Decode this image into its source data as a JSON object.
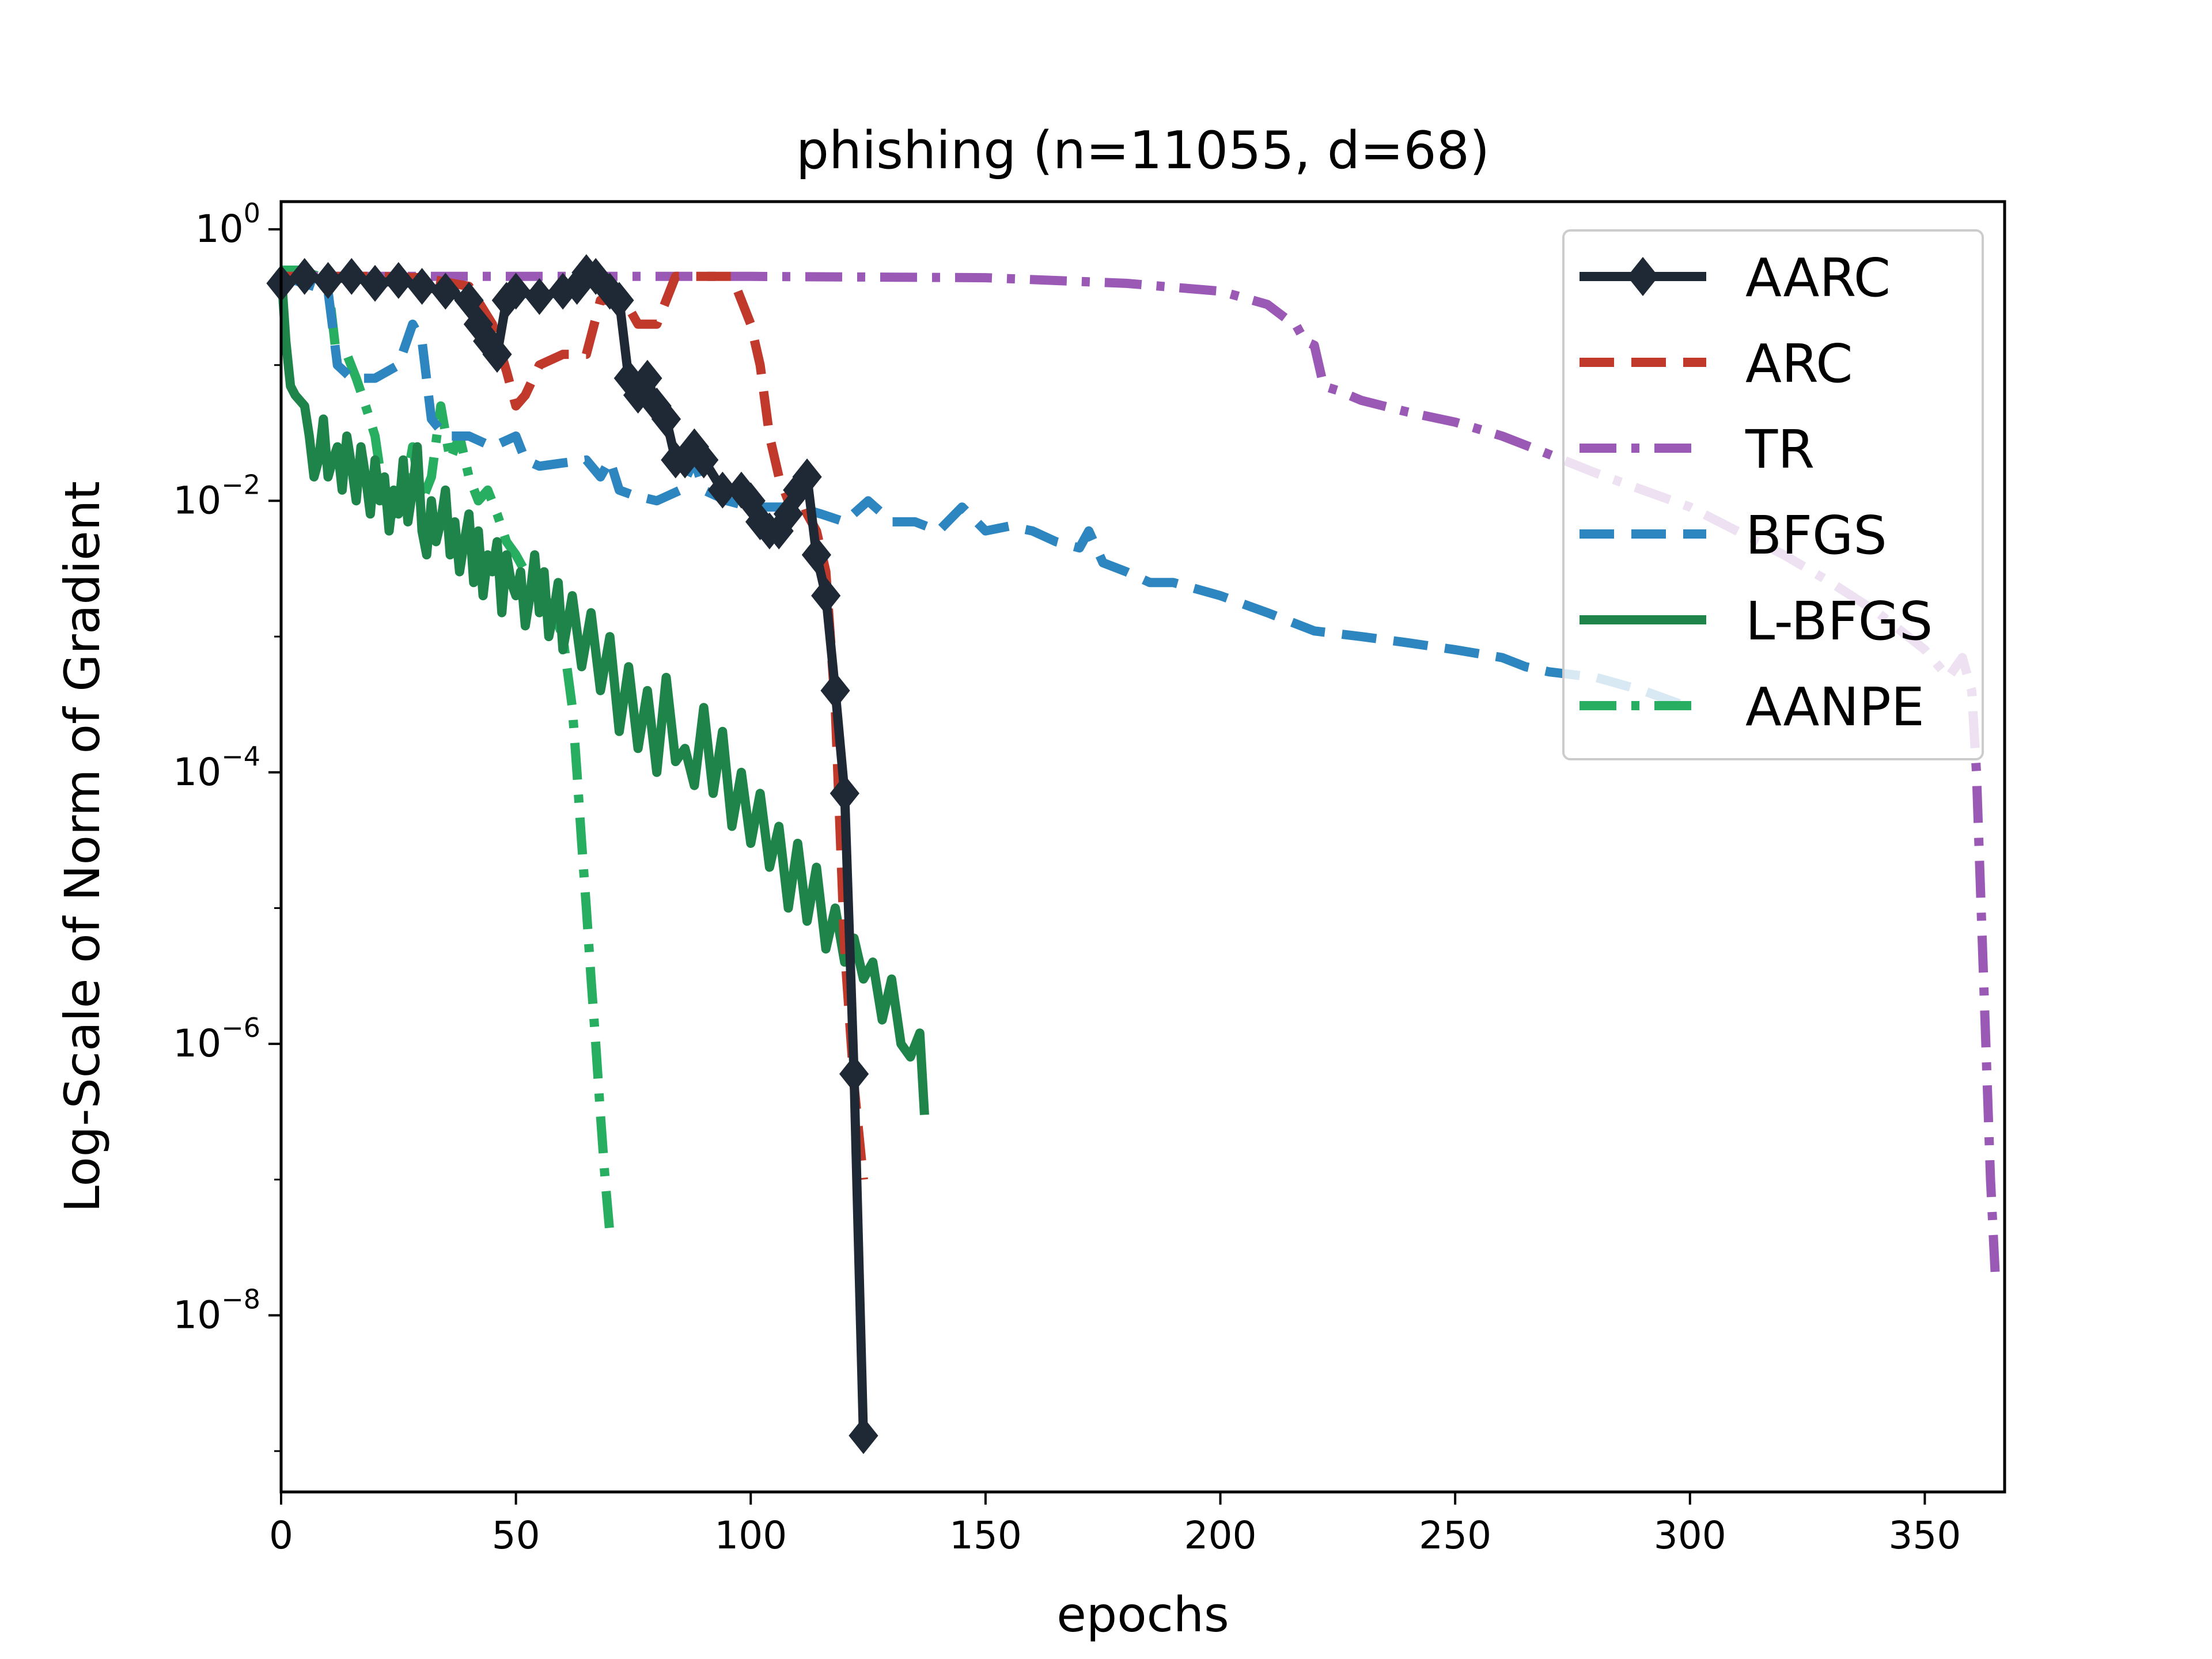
{
  "chart_data": {
    "type": "line",
    "title": "phishing (n=11055, d=68)",
    "xlabel": "epochs",
    "ylabel": "Log-Scale of Norm of Gradient",
    "yscale": "log",
    "xlim": [
      0,
      367
    ],
    "ylim": [
      5e-10,
      1.6
    ],
    "xticks": [
      0,
      50,
      100,
      150,
      200,
      250,
      300,
      350
    ],
    "yticks": [
      {
        "base": "10",
        "exp": "0",
        "value": 1
      },
      {
        "base": "10",
        "exp": "−2",
        "value": 0.01
      },
      {
        "base": "10",
        "exp": "−4",
        "value": 0.0001
      },
      {
        "base": "10",
        "exp": "−6",
        "value": 1e-06
      },
      {
        "base": "10",
        "exp": "−8",
        "value": 1e-08
      }
    ],
    "grid": false,
    "legend_position": "top-right",
    "series": [
      {
        "name": "AARC",
        "color": "#1f2935",
        "style": "solid-diamond",
        "x": [
          0,
          5,
          10,
          15,
          20,
          25,
          30,
          35,
          40,
          42,
          44,
          46,
          48,
          50,
          55,
          60,
          63,
          65,
          67,
          70,
          72,
          74,
          76,
          78,
          80,
          82,
          84,
          86,
          88,
          90,
          94,
          98,
          100,
          102,
          104,
          106,
          108,
          110,
          112,
          114,
          116,
          118,
          120,
          122,
          124
        ],
        "y": [
          0.4,
          0.45,
          0.42,
          0.45,
          0.4,
          0.42,
          0.38,
          0.35,
          0.3,
          0.2,
          0.15,
          0.12,
          0.3,
          0.35,
          0.32,
          0.35,
          0.38,
          0.48,
          0.45,
          0.35,
          0.3,
          0.08,
          0.06,
          0.08,
          0.05,
          0.04,
          0.02,
          0.02,
          0.025,
          0.02,
          0.012,
          0.012,
          0.01,
          0.007,
          0.006,
          0.006,
          0.008,
          0.012,
          0.015,
          0.004,
          0.002,
          0.0004,
          7e-05,
          6e-07,
          1.3e-09
        ]
      },
      {
        "name": "ARC",
        "color": "#c0392b",
        "style": "dashed",
        "x": [
          0,
          20,
          30,
          40,
          45,
          48,
          50,
          52,
          55,
          60,
          65,
          68,
          70,
          72,
          76,
          80,
          84,
          86,
          88,
          92,
          96,
          98,
          100,
          102,
          104,
          106,
          108,
          110,
          112,
          114,
          116,
          118,
          120,
          122,
          124
        ],
        "y": [
          0.45,
          0.45,
          0.44,
          0.38,
          0.2,
          0.09,
          0.05,
          0.06,
          0.1,
          0.12,
          0.12,
          0.3,
          0.3,
          0.35,
          0.2,
          0.2,
          0.45,
          0.45,
          0.45,
          0.45,
          0.45,
          0.3,
          0.2,
          0.1,
          0.03,
          0.015,
          0.01,
          0.013,
          0.008,
          0.006,
          0.003,
          0.0003,
          5e-06,
          5e-07,
          1e-07
        ]
      },
      {
        "name": "TR",
        "color": "#9b59b6",
        "style": "dashdot",
        "x": [
          0,
          100,
          150,
          180,
          200,
          210,
          214,
          216,
          218,
          220,
          222,
          225,
          230,
          240,
          250,
          260,
          270,
          280,
          290,
          300,
          310,
          320,
          330,
          340,
          350,
          355,
          358,
          360,
          361,
          362,
          363,
          364,
          365
        ],
        "y": [
          0.45,
          0.45,
          0.44,
          0.4,
          0.35,
          0.28,
          0.22,
          0.2,
          0.15,
          0.14,
          0.07,
          0.065,
          0.055,
          0.045,
          0.038,
          0.03,
          0.022,
          0.016,
          0.012,
          0.009,
          0.006,
          0.004,
          0.0025,
          0.0015,
          0.0008,
          0.0005,
          0.0007,
          0.0004,
          0.0001,
          1e-05,
          1e-06,
          1e-07,
          2e-08
        ]
      },
      {
        "name": "BFGS",
        "color": "#2e86c1",
        "style": "dashed",
        "x": [
          0,
          5,
          10,
          12,
          15,
          20,
          25,
          28,
          30,
          32,
          35,
          40,
          45,
          50,
          52,
          55,
          60,
          65,
          68,
          70,
          72,
          75,
          80,
          85,
          88,
          90,
          95,
          100,
          110,
          115,
          120,
          125,
          130,
          135,
          140,
          145,
          150,
          155,
          160,
          165,
          170,
          172,
          175,
          180,
          185,
          190,
          200,
          210,
          220,
          230,
          240,
          250,
          260,
          265,
          270,
          280,
          290,
          300
        ],
        "y": [
          0.45,
          0.4,
          0.35,
          0.1,
          0.08,
          0.08,
          0.1,
          0.2,
          0.15,
          0.04,
          0.03,
          0.03,
          0.025,
          0.03,
          0.02,
          0.018,
          0.019,
          0.02,
          0.015,
          0.02,
          0.012,
          0.011,
          0.01,
          0.012,
          0.02,
          0.012,
          0.01,
          0.009,
          0.009,
          0.008,
          0.007,
          0.01,
          0.007,
          0.007,
          0.006,
          0.009,
          0.006,
          0.0065,
          0.006,
          0.005,
          0.0045,
          0.006,
          0.0035,
          0.003,
          0.0025,
          0.0025,
          0.002,
          0.0015,
          0.0011,
          0.001,
          0.0009,
          0.0008,
          0.0007,
          0.0006,
          0.00055,
          0.0005,
          0.0004,
          0.0003
        ]
      },
      {
        "name": "L-BFGS",
        "color": "#1e8449",
        "style": "solid",
        "x": [
          0,
          1,
          2,
          3,
          5,
          6,
          7,
          8,
          9,
          10,
          11,
          12,
          13,
          14,
          15,
          16,
          17,
          18,
          19,
          20,
          21,
          22,
          23,
          24,
          25,
          26,
          27,
          28,
          29,
          30,
          31,
          32,
          33,
          34,
          35,
          36,
          37,
          38,
          39,
          40,
          41,
          42,
          43,
          44,
          45,
          46,
          47,
          48,
          49,
          50,
          51,
          52,
          53,
          54,
          55,
          56,
          57,
          58,
          59,
          60,
          62,
          64,
          66,
          68,
          70,
          72,
          74,
          76,
          78,
          80,
          82,
          84,
          86,
          88,
          90,
          92,
          94,
          96,
          98,
          100,
          102,
          104,
          106,
          108,
          110,
          112,
          114,
          116,
          118,
          120,
          122,
          124,
          126,
          128,
          130,
          132,
          134,
          136,
          137
        ],
        "y": [
          0.5,
          0.15,
          0.07,
          0.06,
          0.05,
          0.03,
          0.015,
          0.02,
          0.04,
          0.015,
          0.02,
          0.025,
          0.012,
          0.03,
          0.018,
          0.01,
          0.025,
          0.015,
          0.008,
          0.02,
          0.01,
          0.015,
          0.006,
          0.012,
          0.008,
          0.02,
          0.007,
          0.012,
          0.025,
          0.006,
          0.004,
          0.01,
          0.005,
          0.007,
          0.012,
          0.004,
          0.007,
          0.003,
          0.005,
          0.008,
          0.0025,
          0.006,
          0.002,
          0.004,
          0.003,
          0.005,
          0.0015,
          0.004,
          0.0025,
          0.002,
          0.003,
          0.0012,
          0.002,
          0.004,
          0.0015,
          0.003,
          0.001,
          0.0015,
          0.0025,
          0.0008,
          0.002,
          0.0006,
          0.0015,
          0.0004,
          0.001,
          0.0002,
          0.0006,
          0.00015,
          0.0004,
          0.0001,
          0.0005,
          0.00012,
          0.00015,
          8e-05,
          0.0003,
          7e-05,
          0.0002,
          4e-05,
          0.0001,
          3e-05,
          7e-05,
          2e-05,
          4e-05,
          1e-05,
          3e-05,
          8e-06,
          2e-05,
          5e-06,
          1e-05,
          4e-06,
          6e-06,
          3e-06,
          4e-06,
          1.5e-06,
          3e-06,
          1e-06,
          8e-07,
          1.2e-06,
          3e-07
        ]
      },
      {
        "name": "AANPE",
        "color": "#27ae60",
        "style": "dashdot",
        "x": [
          0,
          4,
          8,
          10,
          11,
          12,
          14,
          16,
          18,
          20,
          22,
          24,
          26,
          28,
          30,
          32,
          34,
          36,
          38,
          40,
          42,
          44,
          46,
          48,
          50,
          52,
          54,
          56,
          58,
          60,
          62,
          63,
          64,
          65,
          66,
          67,
          68,
          69,
          70
        ],
        "y": [
          0.5,
          0.5,
          0.45,
          0.4,
          0.2,
          0.1,
          0.12,
          0.08,
          0.05,
          0.03,
          0.01,
          0.008,
          0.01,
          0.025,
          0.01,
          0.015,
          0.05,
          0.02,
          0.03,
          0.015,
          0.01,
          0.012,
          0.008,
          0.005,
          0.004,
          0.003,
          0.0025,
          0.002,
          0.0015,
          0.001,
          0.0003,
          0.0001,
          3e-05,
          1e-05,
          3e-06,
          1e-06,
          3e-07,
          1e-07,
          4e-08
        ]
      }
    ]
  }
}
